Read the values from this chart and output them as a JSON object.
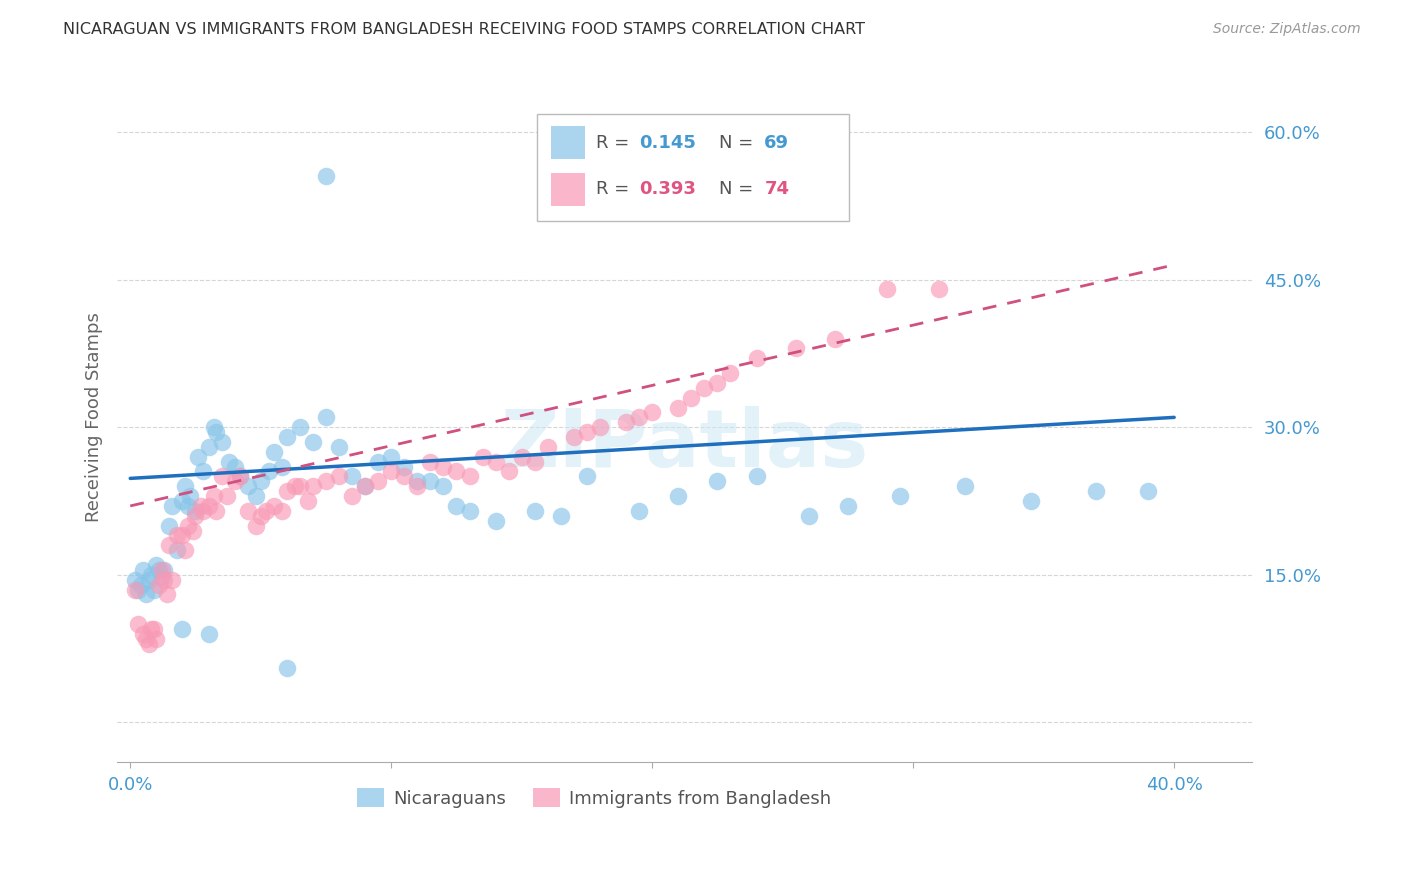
{
  "title": "NICARAGUAN VS IMMIGRANTS FROM BANGLADESH RECEIVING FOOD STAMPS CORRELATION CHART",
  "source": "Source: ZipAtlas.com",
  "ylabel": "Receiving Food Stamps",
  "ytick_vals": [
    0.0,
    0.15,
    0.3,
    0.45,
    0.6
  ],
  "ytick_labels": [
    "",
    "15.0%",
    "30.0%",
    "45.0%",
    "60.0%"
  ],
  "xtick_vals": [
    0.0,
    0.1,
    0.2,
    0.3,
    0.4
  ],
  "xtick_labels": [
    "0.0%",
    "",
    "",
    "",
    "40.0%"
  ],
  "xlim": [
    -0.005,
    0.43
  ],
  "ylim": [
    -0.04,
    0.66
  ],
  "watermark": "ZIPatlas",
  "legend_r1": "0.145",
  "legend_n1": "69",
  "legend_r2": "0.393",
  "legend_n2": "74",
  "color_blue": "#88c4e8",
  "color_pink": "#f899b5",
  "color_blue_text": "#4499d0",
  "color_pink_text": "#e05580",
  "color_blue_line": "#1f6fbf",
  "color_pink_line": "#d05080",
  "color_grid": "#cccccc",
  "blue_line_x": [
    0.0,
    0.4
  ],
  "blue_line_y": [
    0.248,
    0.31
  ],
  "pink_line_x": [
    0.0,
    0.4
  ],
  "pink_line_y": [
    0.22,
    0.465
  ],
  "blue_scatter_x": [
    0.002,
    0.003,
    0.004,
    0.005,
    0.006,
    0.007,
    0.008,
    0.009,
    0.01,
    0.011,
    0.012,
    0.013,
    0.015,
    0.016,
    0.018,
    0.02,
    0.021,
    0.022,
    0.023,
    0.025,
    0.026,
    0.028,
    0.03,
    0.032,
    0.033,
    0.035,
    0.038,
    0.04,
    0.042,
    0.045,
    0.048,
    0.05,
    0.053,
    0.055,
    0.058,
    0.06,
    0.065,
    0.07,
    0.075,
    0.08,
    0.085,
    0.09,
    0.095,
    0.1,
    0.105,
    0.11,
    0.115,
    0.12,
    0.125,
    0.13,
    0.14,
    0.155,
    0.165,
    0.175,
    0.195,
    0.21,
    0.225,
    0.24,
    0.26,
    0.275,
    0.295,
    0.32,
    0.345,
    0.37,
    0.39,
    0.075,
    0.06,
    0.03,
    0.02
  ],
  "blue_scatter_y": [
    0.145,
    0.135,
    0.14,
    0.155,
    0.13,
    0.145,
    0.15,
    0.135,
    0.16,
    0.155,
    0.148,
    0.155,
    0.2,
    0.22,
    0.175,
    0.225,
    0.24,
    0.22,
    0.23,
    0.215,
    0.27,
    0.255,
    0.28,
    0.3,
    0.295,
    0.285,
    0.265,
    0.26,
    0.25,
    0.24,
    0.23,
    0.245,
    0.255,
    0.275,
    0.26,
    0.29,
    0.3,
    0.285,
    0.31,
    0.28,
    0.25,
    0.24,
    0.265,
    0.27,
    0.26,
    0.245,
    0.245,
    0.24,
    0.22,
    0.215,
    0.205,
    0.215,
    0.21,
    0.25,
    0.215,
    0.23,
    0.245,
    0.25,
    0.21,
    0.22,
    0.23,
    0.24,
    0.225,
    0.235,
    0.235,
    0.555,
    0.055,
    0.09,
    0.095
  ],
  "pink_scatter_x": [
    0.002,
    0.003,
    0.005,
    0.006,
    0.007,
    0.008,
    0.009,
    0.01,
    0.011,
    0.012,
    0.013,
    0.014,
    0.015,
    0.016,
    0.018,
    0.02,
    0.021,
    0.022,
    0.024,
    0.025,
    0.027,
    0.028,
    0.03,
    0.032,
    0.033,
    0.035,
    0.037,
    0.04,
    0.042,
    0.045,
    0.048,
    0.05,
    0.052,
    0.055,
    0.058,
    0.06,
    0.063,
    0.065,
    0.068,
    0.07,
    0.075,
    0.08,
    0.085,
    0.09,
    0.095,
    0.1,
    0.105,
    0.11,
    0.115,
    0.12,
    0.125,
    0.13,
    0.135,
    0.14,
    0.145,
    0.15,
    0.155,
    0.16,
    0.17,
    0.175,
    0.18,
    0.19,
    0.195,
    0.2,
    0.21,
    0.215,
    0.22,
    0.225,
    0.23,
    0.24,
    0.255,
    0.27,
    0.29,
    0.31
  ],
  "pink_scatter_y": [
    0.135,
    0.1,
    0.09,
    0.085,
    0.08,
    0.095,
    0.095,
    0.085,
    0.14,
    0.155,
    0.145,
    0.13,
    0.18,
    0.145,
    0.19,
    0.19,
    0.175,
    0.2,
    0.195,
    0.21,
    0.22,
    0.215,
    0.22,
    0.23,
    0.215,
    0.25,
    0.23,
    0.245,
    0.25,
    0.215,
    0.2,
    0.21,
    0.215,
    0.22,
    0.215,
    0.235,
    0.24,
    0.24,
    0.225,
    0.24,
    0.245,
    0.25,
    0.23,
    0.24,
    0.245,
    0.255,
    0.25,
    0.24,
    0.265,
    0.26,
    0.255,
    0.25,
    0.27,
    0.265,
    0.255,
    0.27,
    0.265,
    0.28,
    0.29,
    0.295,
    0.3,
    0.305,
    0.31,
    0.315,
    0.32,
    0.33,
    0.34,
    0.345,
    0.355,
    0.37,
    0.38,
    0.39,
    0.44,
    0.44
  ]
}
